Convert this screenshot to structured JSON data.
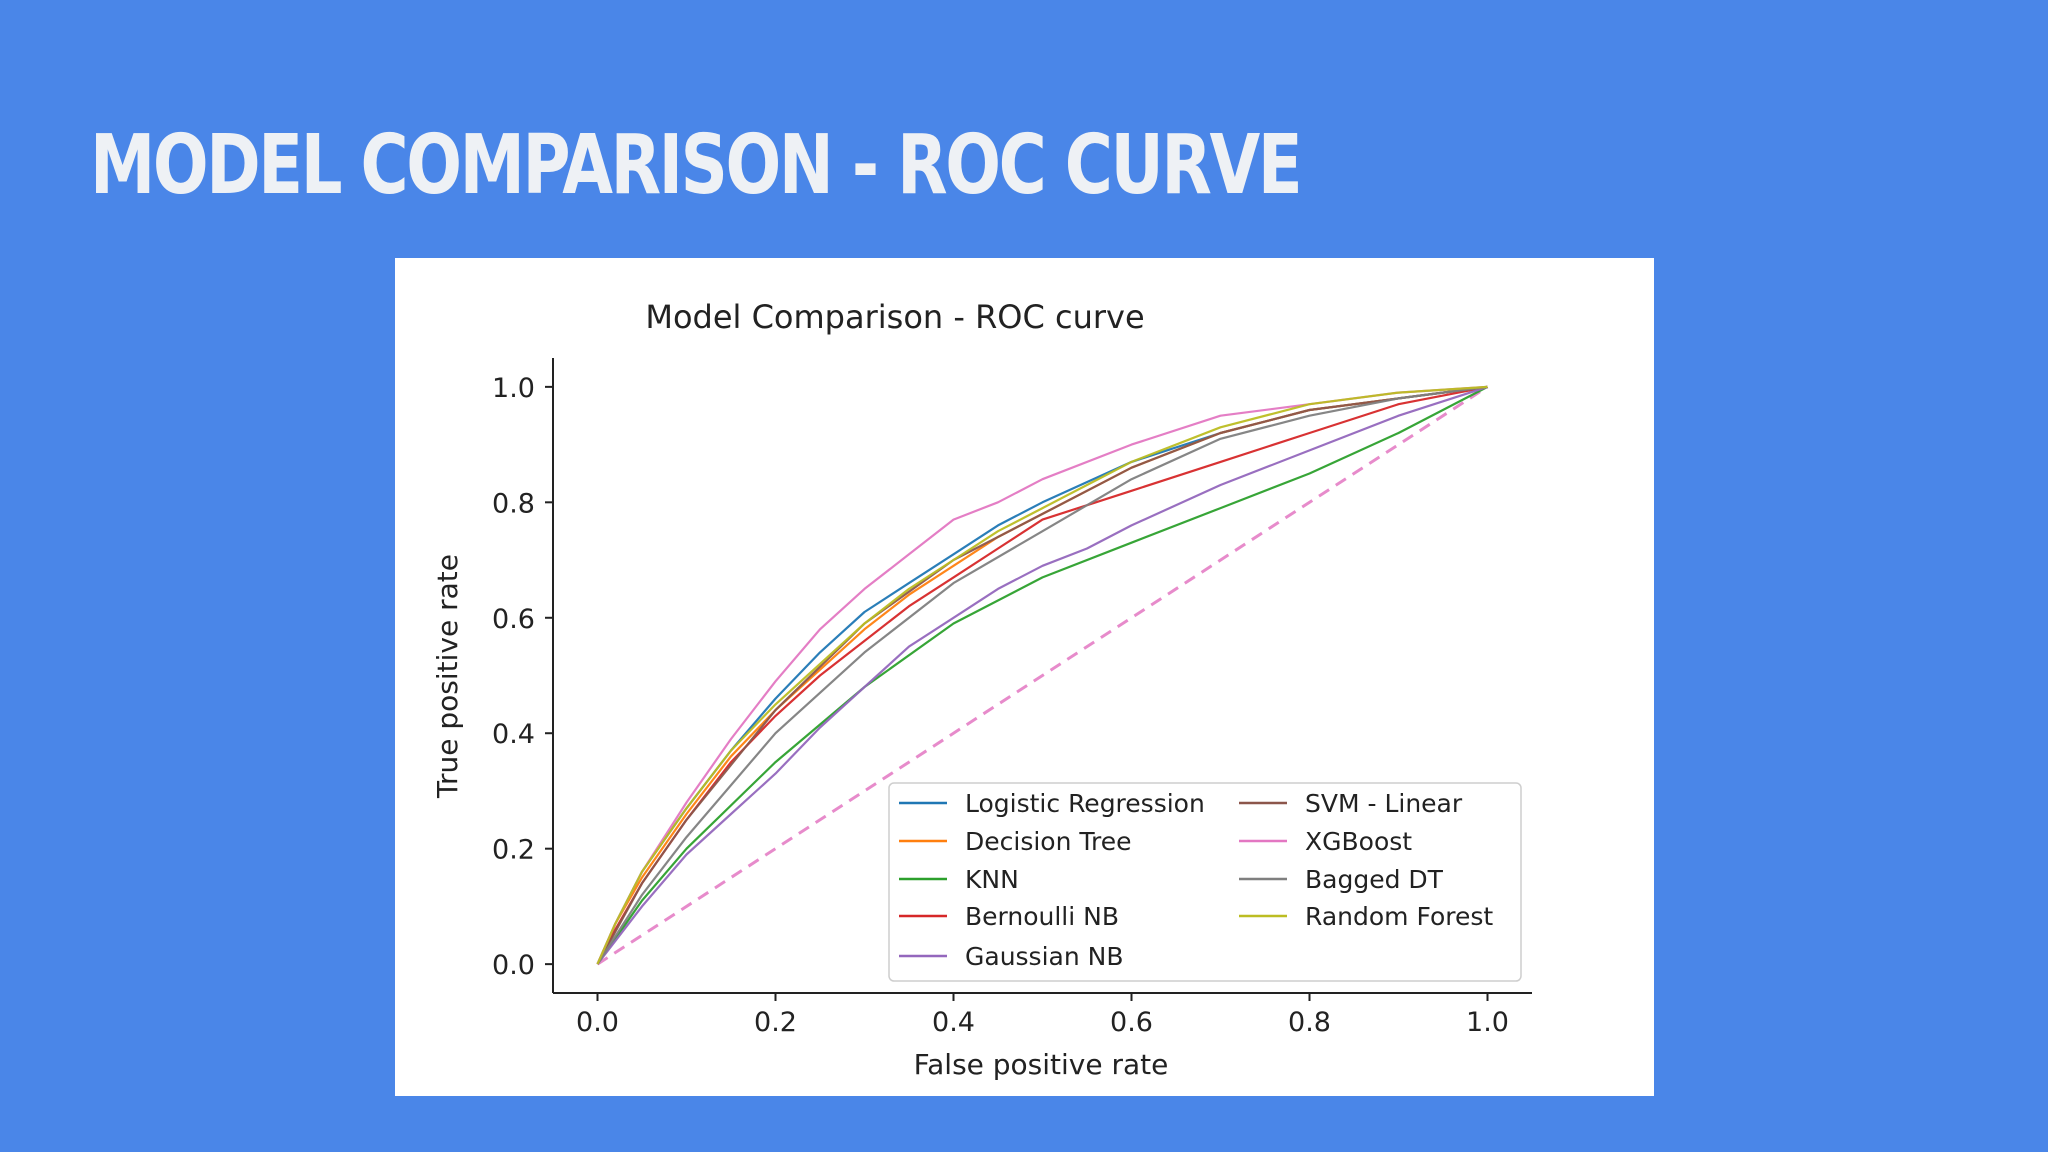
{
  "slide": {
    "title": "Model Comparison - ROC Curve"
  },
  "chart_data": {
    "type": "line",
    "title": "Model Comparison - ROC curve",
    "xlabel": "False positive rate",
    "ylabel": "True positive rate",
    "xlim": [
      -0.05,
      1.05
    ],
    "ylim": [
      -0.05,
      1.05
    ],
    "xticks": [
      "0.0",
      "0.2",
      "0.4",
      "0.6",
      "0.8",
      "1.0"
    ],
    "yticks": [
      "0.0",
      "0.2",
      "0.4",
      "0.6",
      "0.8",
      "1.0"
    ],
    "grid": false,
    "legend_position": "lower right",
    "diagonal": {
      "color": "#e377c2",
      "style": "dashed",
      "x": [
        0,
        1
      ],
      "y": [
        0,
        1
      ]
    },
    "series": [
      {
        "name": "Logistic Regression",
        "color": "#1f77b4",
        "x": [
          0,
          0.02,
          0.05,
          0.1,
          0.15,
          0.2,
          0.25,
          0.3,
          0.35,
          0.4,
          0.45,
          0.5,
          0.6,
          0.7,
          0.8,
          0.9,
          1.0
        ],
        "y": [
          0,
          0.07,
          0.16,
          0.27,
          0.37,
          0.46,
          0.54,
          0.61,
          0.66,
          0.71,
          0.76,
          0.8,
          0.87,
          0.92,
          0.96,
          0.98,
          1.0
        ]
      },
      {
        "name": "Decision Tree",
        "color": "#ff7f0e",
        "x": [
          0,
          0.02,
          0.05,
          0.1,
          0.15,
          0.2,
          0.25,
          0.3,
          0.35,
          0.4,
          0.45,
          0.5,
          0.6,
          0.7,
          0.8,
          0.9,
          1.0
        ],
        "y": [
          0,
          0.07,
          0.15,
          0.26,
          0.36,
          0.44,
          0.51,
          0.58,
          0.64,
          0.69,
          0.74,
          0.78,
          0.86,
          0.92,
          0.96,
          0.98,
          1.0
        ]
      },
      {
        "name": "KNN",
        "color": "#2ca02c",
        "x": [
          0,
          0.05,
          0.1,
          0.2,
          0.3,
          0.4,
          0.5,
          0.6,
          0.7,
          0.8,
          0.9,
          1.0
        ],
        "y": [
          0,
          0.11,
          0.2,
          0.35,
          0.48,
          0.59,
          0.67,
          0.73,
          0.79,
          0.85,
          0.92,
          1.0
        ]
      },
      {
        "name": "Bernoulli NB",
        "color": "#d62728",
        "x": [
          0,
          0.02,
          0.05,
          0.1,
          0.15,
          0.2,
          0.25,
          0.3,
          0.35,
          0.4,
          0.45,
          0.5,
          0.6,
          0.7,
          0.8,
          0.9,
          1.0
        ],
        "y": [
          0,
          0.06,
          0.14,
          0.25,
          0.35,
          0.43,
          0.5,
          0.56,
          0.62,
          0.67,
          0.72,
          0.77,
          0.82,
          0.87,
          0.92,
          0.97,
          1.0
        ]
      },
      {
        "name": "Gaussian NB",
        "color": "#9467bd",
        "x": [
          0,
          0.05,
          0.1,
          0.15,
          0.2,
          0.25,
          0.3,
          0.35,
          0.4,
          0.45,
          0.5,
          0.55,
          0.6,
          0.7,
          0.8,
          0.9,
          1.0
        ],
        "y": [
          0,
          0.1,
          0.19,
          0.26,
          0.33,
          0.41,
          0.48,
          0.55,
          0.6,
          0.65,
          0.69,
          0.72,
          0.76,
          0.83,
          0.89,
          0.95,
          1.0
        ]
      },
      {
        "name": "SVM - Linear",
        "color": "#8c564b",
        "x": [
          0,
          0.05,
          0.1,
          0.2,
          0.3,
          0.4,
          0.5,
          0.6,
          0.7,
          0.8,
          0.9,
          1.0
        ],
        "y": [
          0,
          0.14,
          0.25,
          0.44,
          0.59,
          0.7,
          0.78,
          0.86,
          0.92,
          0.96,
          0.98,
          1.0
        ]
      },
      {
        "name": "XGBoost",
        "color": "#e377c2",
        "x": [
          0,
          0.02,
          0.05,
          0.1,
          0.15,
          0.2,
          0.25,
          0.3,
          0.35,
          0.4,
          0.45,
          0.5,
          0.6,
          0.7,
          0.8,
          0.9,
          1.0
        ],
        "y": [
          0,
          0.07,
          0.16,
          0.28,
          0.39,
          0.49,
          0.58,
          0.65,
          0.71,
          0.77,
          0.8,
          0.84,
          0.9,
          0.95,
          0.97,
          0.99,
          1.0
        ]
      },
      {
        "name": "Bagged DT",
        "color": "#7f7f7f",
        "x": [
          0,
          0.05,
          0.1,
          0.2,
          0.3,
          0.4,
          0.5,
          0.6,
          0.7,
          0.8,
          0.9,
          1.0
        ],
        "y": [
          0,
          0.12,
          0.22,
          0.4,
          0.54,
          0.66,
          0.75,
          0.84,
          0.91,
          0.95,
          0.98,
          1.0
        ]
      },
      {
        "name": "Random Forest",
        "color": "#bcbd22",
        "x": [
          0,
          0.02,
          0.05,
          0.1,
          0.15,
          0.2,
          0.25,
          0.3,
          0.35,
          0.4,
          0.45,
          0.5,
          0.6,
          0.7,
          0.8,
          0.9,
          1.0
        ],
        "y": [
          0,
          0.07,
          0.16,
          0.27,
          0.37,
          0.45,
          0.52,
          0.59,
          0.65,
          0.7,
          0.75,
          0.79,
          0.87,
          0.93,
          0.97,
          0.99,
          1.0
        ]
      }
    ]
  }
}
